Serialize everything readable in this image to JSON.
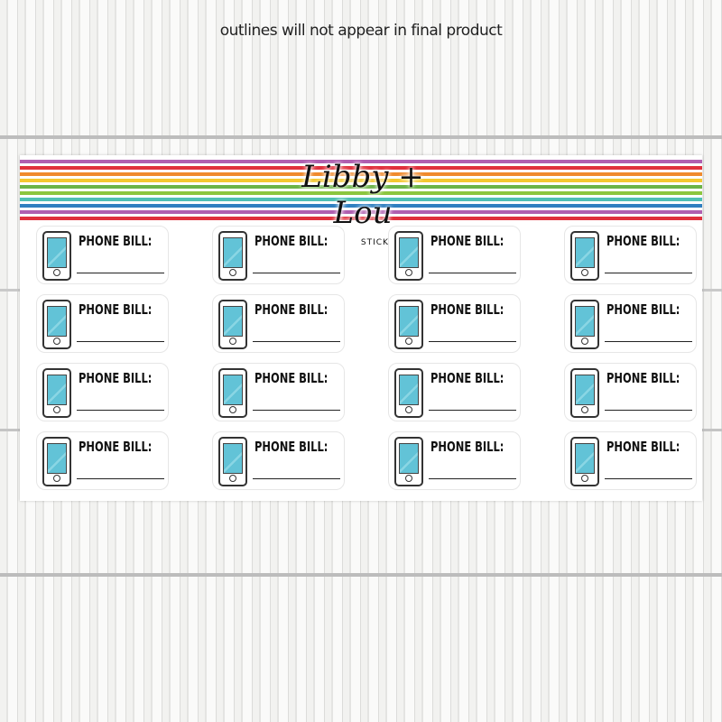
{
  "note": "outlines will not appear in final product",
  "brand": {
    "name": "Libby + Lou",
    "sub": "STICKER CO"
  },
  "stripe_colors": [
    "#b05fb0",
    "#e0303c",
    "#f08a2c",
    "#f5c830",
    "#6cb447",
    "#8cc63e",
    "#4fbfb4",
    "#2f7fc0",
    "#b05fb0",
    "#e0303c"
  ],
  "screen_color": "#62c3d7",
  "sticker_label": "PHONE BILL:",
  "sticker_count": 16
}
